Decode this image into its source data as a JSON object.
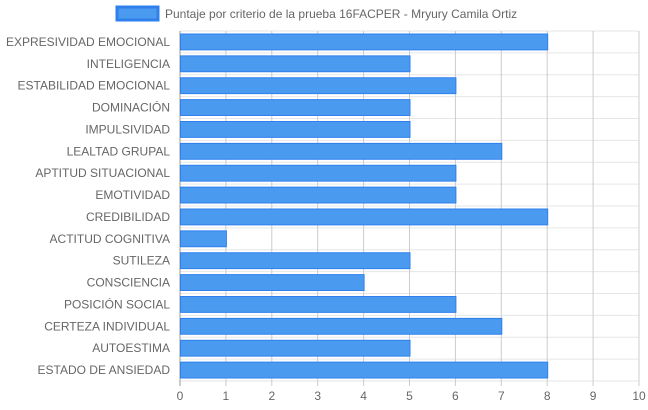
{
  "chart_data": {
    "type": "bar",
    "orientation": "horizontal",
    "categories": [
      "EXPRESIVIDAD EMOCIONAL",
      "INTELIGENCIA",
      "ESTABILIDAD EMOCIONAL",
      "DOMINACIÓN",
      "IMPULSIVIDAD",
      "LEALTAD GRUPAL",
      "APTITUD SITUACIONAL",
      "EMOTIVIDAD",
      "CREDIBILIDAD",
      "ACTITUD COGNITIVA",
      "SUTILEZA",
      "CONSCIENCIA",
      "POSICIÓN SOCIAL",
      "CERTEZA INDIVIDUAL",
      "AUTOESTIMA",
      "ESTADO DE ANSIEDAD"
    ],
    "series": [
      {
        "name": "Puntaje por criterio de la prueba 16FACPER - Mryury Camila Ortiz",
        "values": [
          8,
          5,
          6,
          5,
          5,
          7,
          6,
          6,
          8,
          1,
          5,
          4,
          6,
          7,
          5,
          8
        ],
        "color": "#4a9af0",
        "border_color": "#2f80ed"
      }
    ],
    "xlim": [
      0,
      10
    ],
    "x_ticks": [
      "0",
      "1",
      "2",
      "3",
      "4",
      "5",
      "6",
      "7",
      "8",
      "9",
      "10"
    ],
    "grid": true,
    "legend_position": "top"
  }
}
